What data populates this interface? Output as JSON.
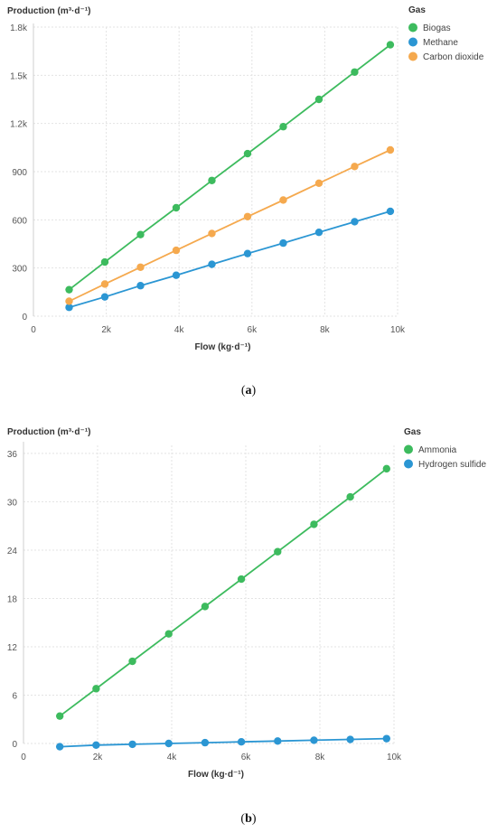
{
  "chart_data": [
    {
      "type": "line",
      "ylabel": "Production (m³·d⁻¹)",
      "xlabel": "Flow (kg·d⁻¹)",
      "legend_title": "Gas",
      "legend_position": "top-right",
      "grid": true,
      "xlim": [
        0,
        10000
      ],
      "ylim": [
        0,
        1800
      ],
      "x_ticks": [
        0,
        2000,
        4000,
        6000,
        8000,
        10000
      ],
      "x_tick_labels": [
        "0",
        "2k",
        "4k",
        "6k",
        "8k",
        "10k"
      ],
      "y_ticks": [
        0,
        300,
        600,
        900,
        1200,
        1500,
        1800
      ],
      "y_tick_labels": [
        "0",
        "300",
        "600",
        "900",
        "1.2k",
        "1.5k",
        "1.8k"
      ],
      "x": [
        980,
        1960,
        2940,
        3920,
        4900,
        5880,
        6860,
        7840,
        8820,
        9800
      ],
      "series": [
        {
          "name": "Biogas",
          "color": "#3dbb5e",
          "values": [
            165,
            337,
            508,
            675,
            845,
            1012,
            1180,
            1350,
            1520,
            1690
          ]
        },
        {
          "name": "Methane",
          "color": "#2b96d3",
          "values": [
            55,
            120,
            190,
            255,
            323,
            390,
            455,
            522,
            588,
            653
          ]
        },
        {
          "name": "Carbon dioxide",
          "color": "#f5a94e",
          "values": [
            93,
            200,
            305,
            410,
            515,
            620,
            723,
            828,
            932,
            1035
          ]
        }
      ]
    },
    {
      "type": "line",
      "ylabel": "Production (m³·d⁻¹)",
      "xlabel": "Flow (kg·d⁻¹)",
      "legend_title": "Gas",
      "legend_position": "top-right",
      "grid": true,
      "xlim": [
        0,
        10000
      ],
      "ylim": [
        0,
        37
      ],
      "x_ticks": [
        0,
        2000,
        4000,
        6000,
        8000,
        10000
      ],
      "x_tick_labels": [
        "0",
        "2k",
        "4k",
        "6k",
        "8k",
        "10k"
      ],
      "y_ticks": [
        0,
        6,
        12,
        18,
        24,
        30,
        36
      ],
      "y_tick_labels": [
        "0",
        "6",
        "12",
        "18",
        "24",
        "30",
        "36"
      ],
      "x": [
        980,
        1960,
        2940,
        3920,
        4900,
        5880,
        6860,
        7840,
        8820,
        9800
      ],
      "series": [
        {
          "name": "Ammonia",
          "color": "#3dbb5e",
          "values": [
            3.4,
            6.8,
            10.2,
            13.6,
            17.0,
            20.4,
            23.8,
            27.2,
            30.6,
            34.1
          ]
        },
        {
          "name": "Hydrogen sulfide",
          "color": "#2b96d3",
          "values": [
            -0.4,
            -0.2,
            -0.1,
            0.0,
            0.1,
            0.2,
            0.3,
            0.4,
            0.5,
            0.6
          ]
        }
      ]
    }
  ],
  "captions": [
    "(a)",
    "(b)"
  ]
}
